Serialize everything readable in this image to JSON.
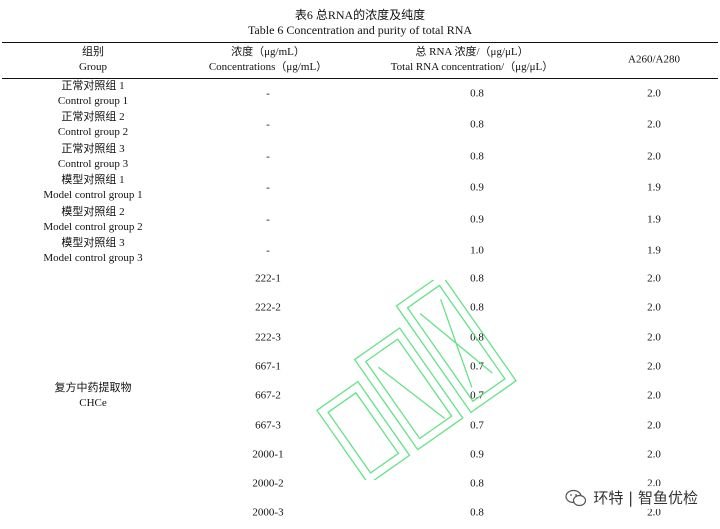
{
  "caption": {
    "cn": "表6  总RNA的浓度及纯度",
    "en": "Table 6 Concentration and purity of total RNA"
  },
  "headers": {
    "group_cn": "组别",
    "group_en": "Group",
    "conc_cn": "浓度（μg/mL）",
    "conc_en": "Concentrations（μg/mL）",
    "rna_cn": "总 RNA 浓度/（μg/μL）",
    "rna_en": "Total RNA concentration/（μg/μL）",
    "ratio": "A260/A280"
  },
  "rows": [
    {
      "group_cn": "正常对照组 1",
      "group_en": "Control group 1",
      "conc": "-",
      "rna": "0.8",
      "ratio": "2.0"
    },
    {
      "group_cn": "正常对照组 2",
      "group_en": "Control group 2",
      "conc": "-",
      "rna": "0.8",
      "ratio": "2.0"
    },
    {
      "group_cn": "正常对照组 3",
      "group_en": "Control group 3",
      "conc": "-",
      "rna": "0.8",
      "ratio": "2.0"
    },
    {
      "group_cn": "模型对照组 1",
      "group_en": "Model control group 1",
      "conc": "-",
      "rna": "0.9",
      "ratio": "1.9"
    },
    {
      "group_cn": "模型对照组 2",
      "group_en": "Model control group 2",
      "conc": "-",
      "rna": "0.9",
      "ratio": "1.9"
    },
    {
      "group_cn": "模型对照组 3",
      "group_en": "Model control group 3",
      "conc": "-",
      "rna": "1.0",
      "ratio": "1.9"
    }
  ],
  "chce": {
    "group_cn": "复方中药提取物",
    "group_en": "CHCe",
    "rows": [
      {
        "conc": "222-1",
        "rna": "0.8",
        "ratio": "2.0"
      },
      {
        "conc": "222-2",
        "rna": "0.8",
        "ratio": "2.0"
      },
      {
        "conc": "222-3",
        "rna": "0.8",
        "ratio": "2.0"
      },
      {
        "conc": "667-1",
        "rna": "0.7",
        "ratio": "2.0"
      },
      {
        "conc": "667-2",
        "rna": "0.7",
        "ratio": "2.0"
      },
      {
        "conc": "667-3",
        "rna": "0.7",
        "ratio": "2.0"
      },
      {
        "conc": "2000-1",
        "rna": "0.9",
        "ratio": "2.0"
      },
      {
        "conc": "2000-2",
        "rna": "0.8",
        "ratio": "2.0"
      },
      {
        "conc": "2000-3",
        "rna": "0.8",
        "ratio": "2.0"
      }
    ]
  },
  "watermark": {
    "brand": "环特 | 智鱼优检",
    "icon": "wechat-icon"
  }
}
